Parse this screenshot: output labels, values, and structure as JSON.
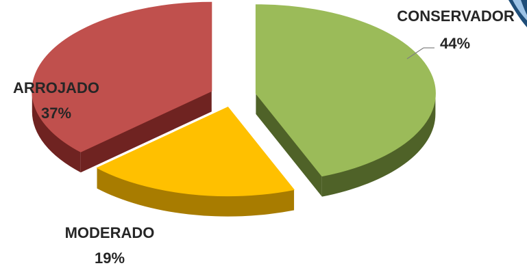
{
  "chart_data": {
    "type": "pie",
    "style": "3d-exploded",
    "slices": [
      {
        "label": "CONSERVADOR",
        "value": 44,
        "value_label": "44%",
        "color": "#9BBB59",
        "side_color": "#4F6228"
      },
      {
        "label": "MODERADO",
        "value": 19,
        "value_label": "19%",
        "color": "#FFC000",
        "side_color": "#A87C00"
      },
      {
        "label": "ARROJADO",
        "value": 37,
        "value_label": "37%",
        "color": "#C0504D",
        "side_color": "#6F2321"
      }
    ],
    "corner_decoration_color": "#1F4E79"
  }
}
